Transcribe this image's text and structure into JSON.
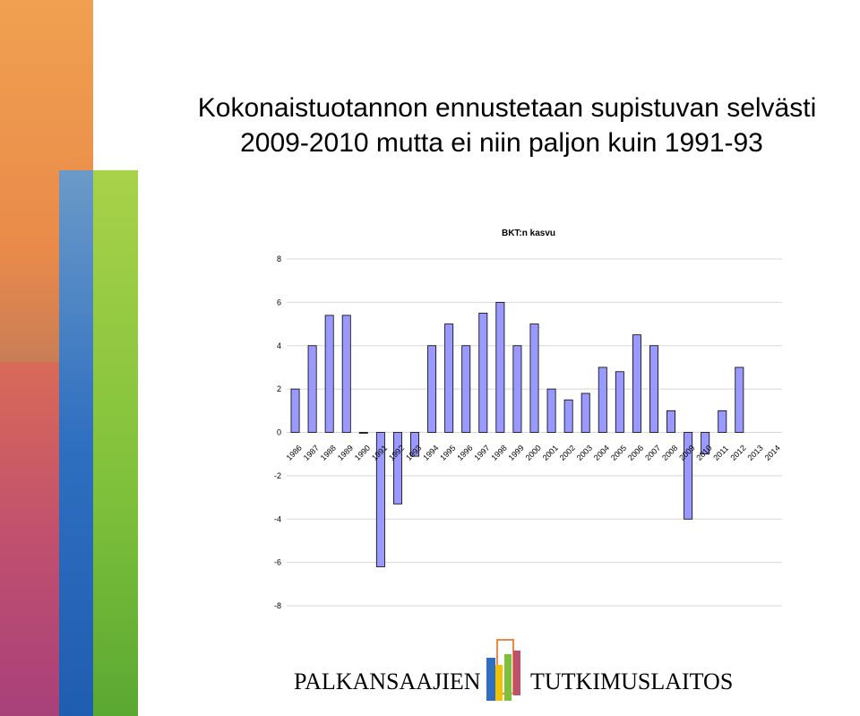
{
  "header": {
    "title_line1": "Kokonaistuotannon ennustetaan supistuvan selvästi",
    "title_line2": "2009-2010  mutta ei niin paljon kuin 1991-93"
  },
  "chart_data": {
    "type": "bar",
    "title": "BKT:n kasvu",
    "categories": [
      "1986",
      "1987",
      "1988",
      "1989",
      "1990",
      "1991",
      "1992",
      "1993",
      "1994",
      "1995",
      "1996",
      "1997",
      "1998",
      "1999",
      "2000",
      "2001",
      "2002",
      "2003",
      "2004",
      "2005",
      "2006",
      "2007",
      "2008",
      "2009",
      "2010",
      "2011",
      "2012",
      "2013",
      "2014"
    ],
    "values": [
      2.0,
      4.0,
      5.4,
      5.4,
      0.0,
      -6.2,
      -3.3,
      -1.1,
      4.0,
      5.0,
      4.0,
      5.5,
      6.0,
      4.0,
      5.0,
      2.0,
      1.5,
      1.8,
      3.0,
      2.8,
      4.5,
      4.0,
      1.0,
      -4.0,
      -1.0,
      1.0,
      3.0,
      null,
      null
    ],
    "ylim": [
      -8,
      8
    ],
    "yticks": [
      8,
      6,
      4,
      2,
      0,
      -2,
      -4,
      -6,
      -8
    ],
    "grid": true,
    "bar_color": "#9999ff",
    "xlabel": "",
    "ylabel": ""
  },
  "footer": {
    "logo_left": "PALKANSAAJIEN",
    "logo_right": "TUTKIMUSLAITOS"
  },
  "colors": {
    "orange": "#e98a4a",
    "green": "#7ec03a",
    "blue": "#2f6fc0",
    "red": "#c0506e"
  }
}
